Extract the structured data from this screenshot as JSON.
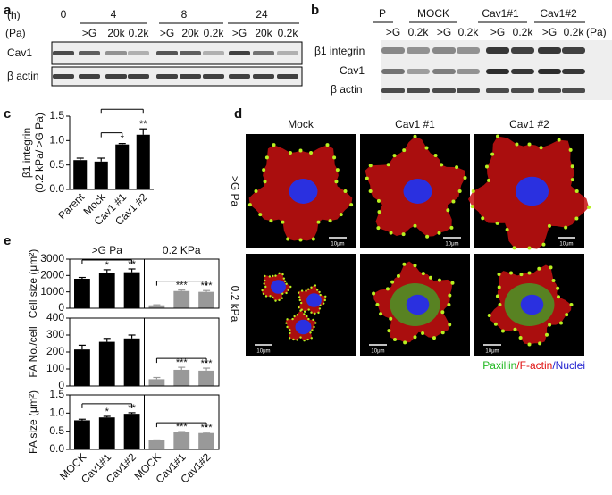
{
  "panel_a": {
    "label": "a",
    "unit_time": "(h)",
    "unit_pressure": "(Pa)",
    "times": [
      "0",
      "4",
      "8",
      "24"
    ],
    "conditions": [
      ">G",
      "20k",
      "0.2k",
      ">G",
      "20k",
      "0.2k",
      ">G",
      "20k",
      "0.2k"
    ],
    "rows": [
      "Cav1",
      "β actin"
    ]
  },
  "panel_b": {
    "label": "b",
    "groups": [
      "P",
      "MOCK",
      "Cav1#1",
      "Cav1#2"
    ],
    "conditions": [
      ">G",
      "0.2k",
      ">G",
      "0.2k",
      ">G",
      "0.2k",
      ">G",
      "0.2k"
    ],
    "unit_pressure": "(Pa)",
    "rows": [
      "β1 integrin",
      "Cav1",
      "β actin"
    ]
  },
  "panel_d": {
    "label": "d",
    "columns": [
      "Mock",
      "Cav1 #1",
      "Cav1 #2"
    ],
    "rows": [
      ">G  Pa",
      "0.2 kPa"
    ],
    "scale_bars": [
      "10μm",
      "10μm",
      "10μm",
      "10μm",
      "10μm",
      "10μm"
    ],
    "legend": [
      {
        "text": "Paxillin",
        "color": "#22b822"
      },
      {
        "text": "/F-actin",
        "color": "#e01010"
      },
      {
        "text": "/Nuclei",
        "color": "#2020d0"
      }
    ]
  },
  "chart_data": [
    {
      "type": "bar",
      "panel": "c",
      "ylabel": [
        "β1 integrin",
        "(0.2 kPa/ >G Pa)"
      ],
      "categories": [
        "Parent",
        "Mock",
        "Cav1 #1",
        "Cav1 #2"
      ],
      "values": [
        0.6,
        0.57,
        0.92,
        1.12
      ],
      "errors": [
        0.04,
        0.07,
        0.02,
        0.12
      ],
      "colors": [
        "#000000",
        "#000000",
        "#000000",
        "#000000"
      ],
      "ylim": [
        0,
        1.5
      ],
      "yticks": [
        {
          "value": 0,
          "label": "0.0"
        },
        0.5,
        {
          "value": 1,
          "label": "1.0"
        },
        1.5
      ],
      "annotations": [
        "*",
        "**"
      ]
    },
    {
      "type": "bar",
      "panel": "e",
      "groups": [
        ">G Pa",
        "0.2 KPa"
      ],
      "ylabel": [
        "Cell size (μm²)"
      ],
      "categories": [
        null,
        null,
        null,
        null,
        null,
        null
      ],
      "values": [
        1800,
        2150,
        2200,
        180,
        1050,
        1000
      ],
      "errors": [
        80,
        200,
        200,
        30,
        60,
        80
      ],
      "colors": [
        "#000000",
        "#000000",
        "#000000",
        "#999999",
        "#999999",
        "#999999"
      ],
      "ylim": [
        0,
        3000
      ],
      "yticks": [
        0,
        1000,
        2000,
        3000
      ],
      "annotations": [
        "*",
        "**",
        "***",
        "***"
      ]
    },
    {
      "type": "bar",
      "ylabel": [
        "FA No./cell"
      ],
      "categories": [
        null,
        null,
        null,
        null,
        null,
        null
      ],
      "values": [
        215,
        260,
        280,
        40,
        95,
        90
      ],
      "errors": [
        25,
        20,
        20,
        10,
        15,
        15
      ],
      "colors": [
        "#000000",
        "#000000",
        "#000000",
        "#999999",
        "#999999",
        "#999999"
      ],
      "ylim": [
        0,
        400
      ],
      "yticks": [
        0,
        100,
        200,
        300,
        400
      ],
      "annotations": [
        "***",
        "***"
      ]
    },
    {
      "type": "bar",
      "ylabel": [
        "FA size (μm²)"
      ],
      "categories": [
        "MOCK",
        "Cav1#1",
        "Cav1#2",
        "MOCK",
        "Cav1#1",
        "Cav1#2"
      ],
      "values": [
        0.8,
        0.88,
        0.98,
        0.25,
        0.47,
        0.45
      ],
      "errors": [
        0.03,
        0.03,
        0.03,
        0.01,
        0.02,
        0.02
      ],
      "colors": [
        "#000000",
        "#000000",
        "#000000",
        "#999999",
        "#999999",
        "#999999"
      ],
      "ylim": [
        0,
        1.5
      ],
      "yticks": [
        {
          "value": 0,
          "label": "0.0"
        },
        0.5,
        {
          "value": 1,
          "label": "1.0"
        },
        1.5
      ],
      "annotations": [
        "*",
        "**",
        "***",
        "***"
      ]
    }
  ]
}
